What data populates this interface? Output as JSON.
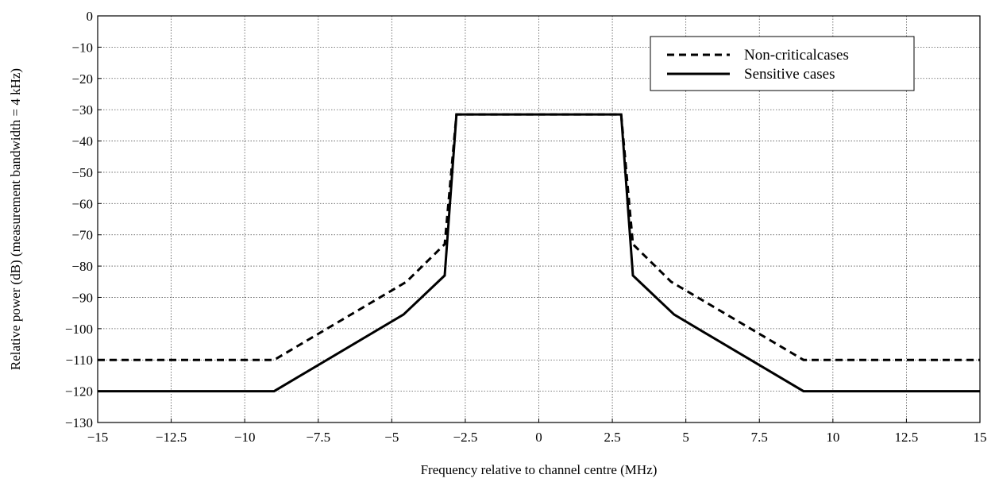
{
  "chart_data": {
    "type": "line",
    "xlabel": "Frequency relative to channel centre (MHz)",
    "ylabel": "Relative power (dB) (measurement bandwidth = 4 kHz)",
    "xlim": [
      -15,
      15
    ],
    "ylim": [
      -130,
      0
    ],
    "grid": true,
    "legend_position": "top-right",
    "x_ticks": [
      -15,
      -12.5,
      -10,
      -7.5,
      -5,
      -2.5,
      0,
      2.5,
      5,
      7.5,
      10,
      12.5,
      15
    ],
    "x_tick_labels": [
      "−15",
      "−12.5",
      "−10",
      "−7.5",
      "−5",
      "−2.5",
      "0",
      "2.5",
      "5",
      "7.5",
      "10",
      "12.5",
      "15"
    ],
    "y_ticks": [
      0,
      -10,
      -20,
      -30,
      -40,
      -50,
      -60,
      -70,
      -80,
      -90,
      -100,
      -110,
      -120,
      -130
    ],
    "y_tick_labels": [
      "0",
      "−10",
      "−20",
      "−30",
      "−40",
      "−50",
      "−60",
      "−70",
      "−80",
      "−90",
      "−100",
      "−110",
      "−120",
      "−130"
    ],
    "series": [
      {
        "name": "Non-criticalcases",
        "style": "dashed",
        "color": "#000000",
        "x": [
          -15,
          -9,
          -4.5,
          -3.2,
          -2.8,
          2.8,
          3.2,
          4.5,
          9,
          15
        ],
        "y": [
          -110,
          -110,
          -85,
          -73,
          -31.5,
          -31.5,
          -73,
          -85,
          -110,
          -110
        ]
      },
      {
        "name": "Sensitive cases",
        "style": "solid",
        "color": "#000000",
        "x": [
          -15,
          -9,
          -4.6,
          -3.2,
          -2.8,
          2.8,
          3.2,
          4.6,
          9,
          15
        ],
        "y": [
          -120,
          -120,
          -95.5,
          -83,
          -31.5,
          -31.5,
          -83,
          -95.5,
          -120,
          -120
        ]
      }
    ]
  }
}
